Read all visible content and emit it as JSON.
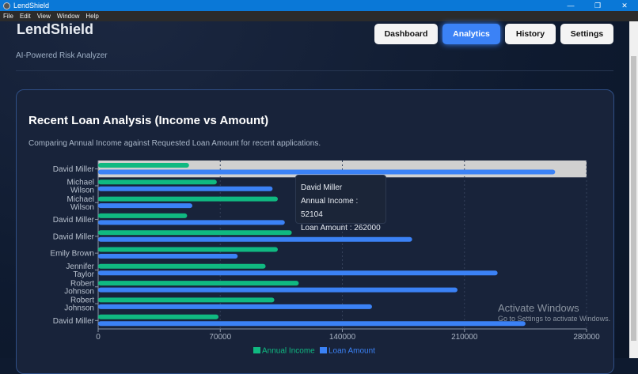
{
  "window": {
    "title": "LendShield",
    "controls": [
      "—",
      "❐",
      "✕"
    ]
  },
  "menu": [
    "File",
    "Edit",
    "View",
    "Window",
    "Help"
  ],
  "header": {
    "brand": "LendShield",
    "tagline": "AI-Powered Risk Analyzer",
    "nav": [
      {
        "label": "Dashboard",
        "active": false
      },
      {
        "label": "Analytics",
        "active": true
      },
      {
        "label": "History",
        "active": false
      },
      {
        "label": "Settings",
        "active": false
      }
    ]
  },
  "card": {
    "title": "Recent Loan Analysis (Income vs Amount)",
    "subtitle": "Comparing Annual Income against Requested Loan Amount for recent applications."
  },
  "tooltip": {
    "name": "David Miller",
    "income_line": "Annual Income : 52104",
    "loan_line": "Loan Amount : 262000"
  },
  "watermark": {
    "title": "Activate Windows",
    "text": "Go to Settings to activate Windows."
  },
  "chart_data": {
    "type": "bar",
    "orientation": "horizontal",
    "categories": [
      [
        "David Miller"
      ],
      [
        "Michael",
        "Wilson"
      ],
      [
        "Michael",
        "Wilson"
      ],
      [
        "David Miller"
      ],
      [
        "David Miller"
      ],
      [
        "Emily Brown"
      ],
      [
        "Jennifer",
        "Taylor"
      ],
      [
        "Robert",
        "Johnson"
      ],
      [
        "Robert",
        "Johnson"
      ],
      [
        "David Miller"
      ]
    ],
    "series": [
      {
        "name": "Annual Income",
        "color": "#10b981",
        "values": [
          52104,
          68000,
          103000,
          51000,
          111000,
          103000,
          96000,
          115000,
          101000,
          69000
        ]
      },
      {
        "name": "Loan Amount",
        "color": "#3b82f6",
        "values": [
          262000,
          100000,
          54000,
          107000,
          180000,
          80000,
          229000,
          206000,
          157000,
          245000
        ]
      }
    ],
    "xlim": [
      0,
      280000
    ],
    "xticks": [
      "0",
      "70000",
      "140000",
      "210000",
      "280000"
    ],
    "grid": true,
    "legend": "bottom",
    "highlighted_index": 0
  }
}
